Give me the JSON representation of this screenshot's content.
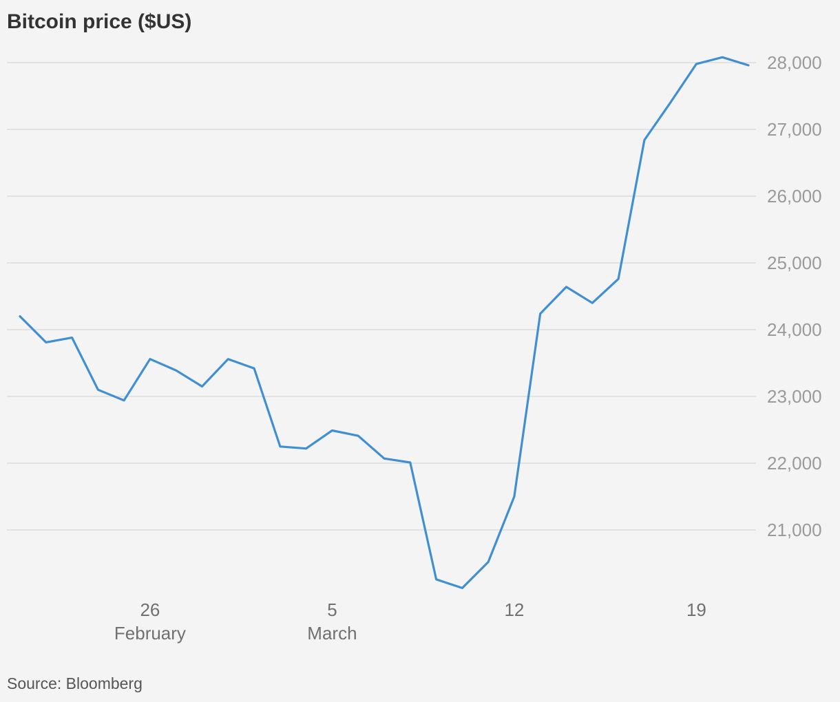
{
  "title": "Bitcoin price ($US)",
  "source": "Source: Bloomberg",
  "colors": {
    "background": "#f4f4f4",
    "series": "#3f8fd2",
    "grid": "#dcdcdc",
    "y_tick_text": "#9a9a9a",
    "x_tick_text": "#707070",
    "title_text": "#333333"
  },
  "chart_data": {
    "type": "line",
    "title": "Bitcoin price ($US)",
    "xlabel": "",
    "ylabel": "",
    "grid": true,
    "y_axis_side": "right",
    "ylim": [
      20000,
      28200
    ],
    "xlim": [
      "2023-02-20",
      "2023-03-21"
    ],
    "y_ticks": [
      {
        "value": 21000,
        "label": "21,000"
      },
      {
        "value": 22000,
        "label": "22,000"
      },
      {
        "value": 23000,
        "label": "23,000"
      },
      {
        "value": 24000,
        "label": "24,000"
      },
      {
        "value": 25000,
        "label": "25,000"
      },
      {
        "value": 26000,
        "label": "26,000"
      },
      {
        "value": 27000,
        "label": "27,000"
      },
      {
        "value": 28000,
        "label": "28,000"
      }
    ],
    "x_ticks": [
      {
        "x": "2023-02-26",
        "label": "26",
        "sublabel": "February"
      },
      {
        "x": "2023-03-05",
        "label": "5",
        "sublabel": "March"
      },
      {
        "x": "2023-03-12",
        "label": "12",
        "sublabel": ""
      },
      {
        "x": "2023-03-19",
        "label": "19",
        "sublabel": ""
      }
    ],
    "series": [
      {
        "points": [
          {
            "x": "2023-02-21",
            "y": 24200
          },
          {
            "x": "2023-02-22",
            "y": 23810
          },
          {
            "x": "2023-02-23",
            "y": 23880
          },
          {
            "x": "2023-02-24",
            "y": 23100
          },
          {
            "x": "2023-02-25",
            "y": 22940
          },
          {
            "x": "2023-02-26",
            "y": 23560
          },
          {
            "x": "2023-02-27",
            "y": 23390
          },
          {
            "x": "2023-02-28",
            "y": 23150
          },
          {
            "x": "2023-03-01",
            "y": 23560
          },
          {
            "x": "2023-03-02",
            "y": 23420
          },
          {
            "x": "2023-03-03",
            "y": 22250
          },
          {
            "x": "2023-03-04",
            "y": 22220
          },
          {
            "x": "2023-03-05",
            "y": 22490
          },
          {
            "x": "2023-03-06",
            "y": 22410
          },
          {
            "x": "2023-03-07",
            "y": 22070
          },
          {
            "x": "2023-03-08",
            "y": 22010
          },
          {
            "x": "2023-03-09",
            "y": 20260
          },
          {
            "x": "2023-03-10",
            "y": 20130
          },
          {
            "x": "2023-03-11",
            "y": 20520
          },
          {
            "x": "2023-03-12",
            "y": 21500
          },
          {
            "x": "2023-03-13",
            "y": 24240
          },
          {
            "x": "2023-03-14",
            "y": 24640
          },
          {
            "x": "2023-03-15",
            "y": 24400
          },
          {
            "x": "2023-03-16",
            "y": 24760
          },
          {
            "x": "2023-03-17",
            "y": 26840
          },
          {
            "x": "2023-03-18",
            "y": 27400
          },
          {
            "x": "2023-03-19",
            "y": 27980
          },
          {
            "x": "2023-03-20",
            "y": 28080
          },
          {
            "x": "2023-03-21",
            "y": 27960
          }
        ]
      }
    ]
  }
}
